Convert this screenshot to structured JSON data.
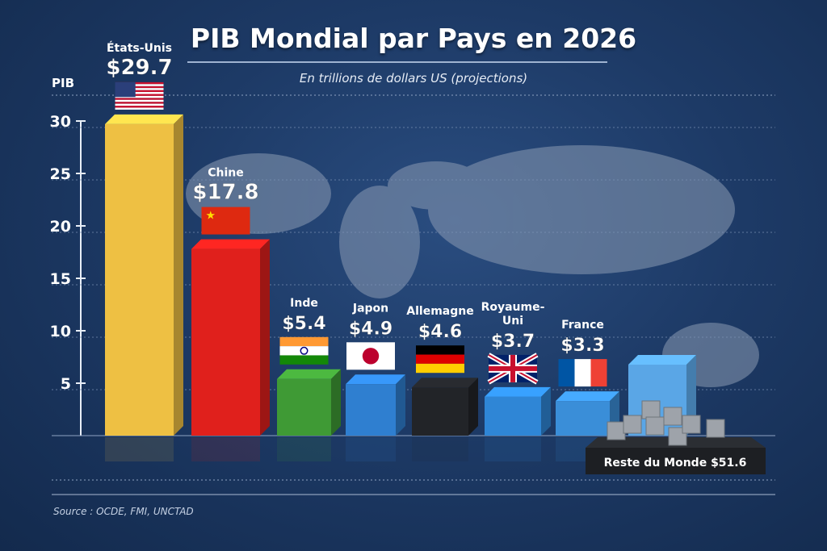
{
  "chart_data": {
    "type": "bar",
    "title": "PIB Mondial par Pays en 2026",
    "subtitle": "En trillions de dollars US (projections)",
    "ylabel": "PIB",
    "ylim": [
      0,
      30
    ],
    "yticks": [
      5,
      10,
      15,
      20,
      25,
      30
    ],
    "grid": true,
    "categories": [
      "États-Unis",
      "Chine",
      "Inde",
      "Japon",
      "Allemagne",
      "Royaume-Uni",
      "France"
    ],
    "values": [
      29.7,
      17.8,
      5.4,
      4.9,
      4.6,
      3.7,
      3.3
    ],
    "value_labels": [
      "$29.7",
      "$17.8",
      "$5.4",
      "$4.9",
      "$4.6",
      "$3.7",
      "$3.3"
    ],
    "colors": [
      "#eec043",
      "#e0201c",
      "#3f9a35",
      "#2f7fd0",
      "#222428",
      "#2f86d6",
      "#3a8ed8"
    ],
    "flags": [
      "us",
      "cn",
      "in",
      "jp",
      "de",
      "gb",
      "fr"
    ],
    "extra": {
      "label": "Reste du Monde",
      "value": 51.6,
      "value_label": "$51.6",
      "color": "#5aa6e6"
    },
    "source": "Source : OCDE, FMI, UNCTAD"
  }
}
